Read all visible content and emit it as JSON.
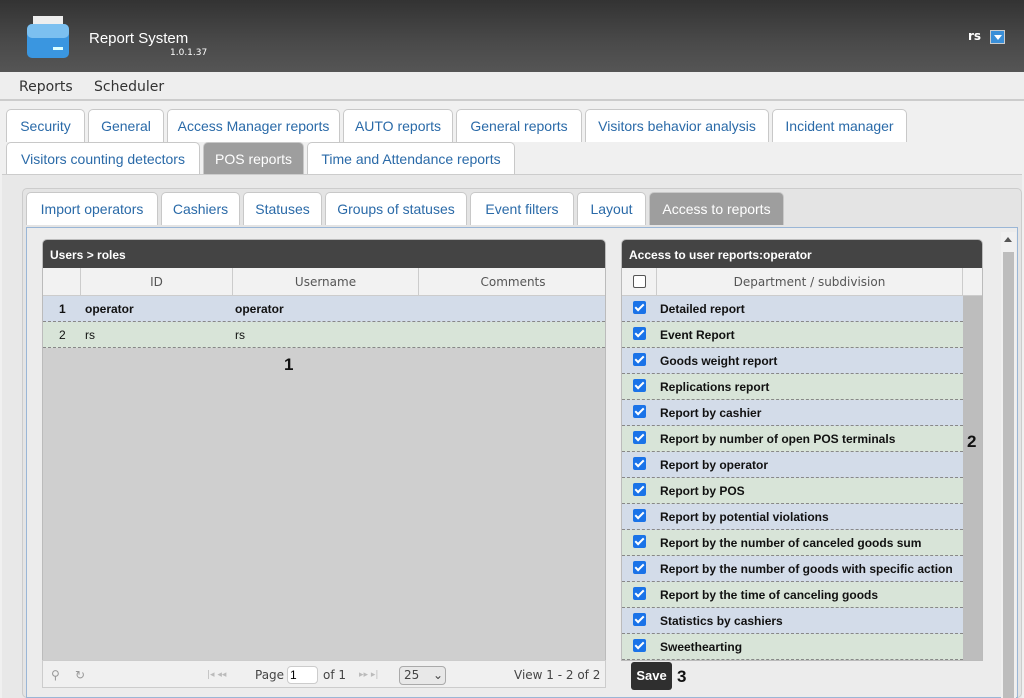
{
  "header": {
    "app_title": "Report System",
    "version": "1.0.1.37",
    "user": "rs"
  },
  "menu": [
    "Reports",
    "Scheduler"
  ],
  "tabs": [
    "Security",
    "General",
    "Access Manager reports",
    "AUTO reports",
    "General reports",
    "Visitors behavior analysis",
    "Incident manager",
    "Visitors counting detectors",
    "POS reports",
    "Time and Attendance reports"
  ],
  "active_tab": "POS reports",
  "subtabs": [
    "Import operators",
    "Cashiers",
    "Statuses",
    "Groups of statuses",
    "Event filters",
    "Layout",
    "Access to reports"
  ],
  "active_subtab": "Access to reports",
  "users_grid": {
    "title": "Users > roles",
    "columns": [
      "ID",
      "Username",
      "Comments"
    ],
    "rows": [
      {
        "n": "1",
        "id": "operator",
        "username": "operator",
        "comments": ""
      },
      {
        "n": "2",
        "id": "rs",
        "username": "rs",
        "comments": ""
      }
    ]
  },
  "pager": {
    "page_label": "Page",
    "page": "1",
    "of_label": "of 1",
    "page_size": "25",
    "view": "View 1 - 2 of 2"
  },
  "access_grid": {
    "title": "Access to user reports:operator",
    "column": "Department / subdivision",
    "select_all": false,
    "rows": [
      {
        "label": "Detailed report",
        "checked": true
      },
      {
        "label": "Event Report",
        "checked": true
      },
      {
        "label": "Goods weight report",
        "checked": true
      },
      {
        "label": "Replications report",
        "checked": true
      },
      {
        "label": "Report by cashier",
        "checked": true
      },
      {
        "label": "Report by number of open POS terminals",
        "checked": true
      },
      {
        "label": "Report by operator",
        "checked": true
      },
      {
        "label": "Report by POS",
        "checked": true
      },
      {
        "label": "Report by potential violations",
        "checked": true
      },
      {
        "label": "Report by the number of canceled goods sum",
        "checked": true
      },
      {
        "label": "Report by the number of goods with specific action",
        "checked": true
      },
      {
        "label": "Report by the time of canceling goods",
        "checked": true
      },
      {
        "label": "Statistics by cashiers",
        "checked": true
      },
      {
        "label": "Sweethearting",
        "checked": true
      }
    ]
  },
  "save_label": "Save",
  "annotations": [
    "1",
    "2",
    "3"
  ]
}
